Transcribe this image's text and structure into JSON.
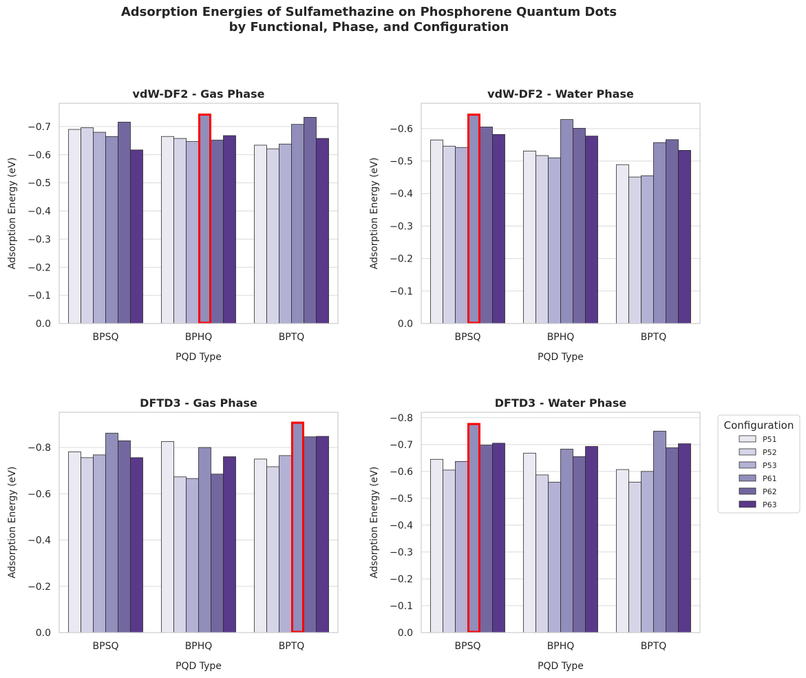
{
  "figure": {
    "title_line1": "Adsorption Energies of Sulfamethazine on Phosphorene Quantum Dots",
    "title_line2": "by Functional, Phase, and Configuration"
  },
  "legend": {
    "title": "Configuration",
    "entries": [
      "P51",
      "P52",
      "P53",
      "P61",
      "P62",
      "P63"
    ],
    "colors": [
      "#ebe9f2",
      "#d6d5e8",
      "#b3b1d4",
      "#918ebb",
      "#73679f",
      "#593989"
    ]
  },
  "highlight_color": "#ff0000",
  "chart_data": [
    {
      "type": "bar",
      "title": "vdW-DF2 - Gas Phase",
      "xlabel": "PQD Type",
      "ylabel": "Adsorption Energy (eV)",
      "categories": [
        "BPSQ",
        "BPHQ",
        "BPTQ"
      ],
      "ylim": [
        0,
        -0.783
      ],
      "yticks": [
        0.0,
        -0.1,
        -0.2,
        -0.3,
        -0.4,
        -0.5,
        -0.6,
        -0.7
      ],
      "ytick_labels": [
        "0.0",
        "−0.1",
        "−0.2",
        "−0.3",
        "−0.4",
        "−0.5",
        "−0.6",
        "−0.7"
      ],
      "series": [
        {
          "name": "P51",
          "values": [
            -0.69,
            -0.665,
            -0.634
          ]
        },
        {
          "name": "P52",
          "values": [
            -0.696,
            -0.658,
            -0.621
          ]
        },
        {
          "name": "P53",
          "values": [
            -0.68,
            -0.647,
            -0.638
          ]
        },
        {
          "name": "P61",
          "values": [
            -0.665,
            -0.745,
            -0.708
          ]
        },
        {
          "name": "P62",
          "values": [
            -0.716,
            -0.652,
            -0.733
          ]
        },
        {
          "name": "P63",
          "values": [
            -0.617,
            -0.668,
            -0.658
          ]
        }
      ],
      "highlight": {
        "category": "BPHQ",
        "series": "P61"
      },
      "grid": true
    },
    {
      "type": "bar",
      "title": "vdW-DF2 - Water Phase",
      "xlabel": "PQD Type",
      "ylabel": "Adsorption Energy (eV)",
      "categories": [
        "BPSQ",
        "BPHQ",
        "BPTQ"
      ],
      "ylim": [
        0,
        -0.678
      ],
      "yticks": [
        0.0,
        -0.1,
        -0.2,
        -0.3,
        -0.4,
        -0.5,
        -0.6
      ],
      "ytick_labels": [
        "0.0",
        "−0.1",
        "−0.2",
        "−0.3",
        "−0.4",
        "−0.5",
        "−0.6"
      ],
      "series": [
        {
          "name": "P51",
          "values": [
            -0.565,
            -0.531,
            -0.489
          ]
        },
        {
          "name": "P52",
          "values": [
            -0.546,
            -0.517,
            -0.451
          ]
        },
        {
          "name": "P53",
          "values": [
            -0.542,
            -0.51,
            -0.455
          ]
        },
        {
          "name": "P61",
          "values": [
            -0.645,
            -0.628,
            -0.557
          ]
        },
        {
          "name": "P62",
          "values": [
            -0.605,
            -0.601,
            -0.566
          ]
        },
        {
          "name": "P63",
          "values": [
            -0.582,
            -0.577,
            -0.533
          ]
        }
      ],
      "highlight": {
        "category": "BPSQ",
        "series": "P61"
      },
      "grid": true
    },
    {
      "type": "bar",
      "title": "DFTD3 - Gas Phase",
      "xlabel": "PQD Type",
      "ylabel": "Adsorption Energy (eV)",
      "categories": [
        "BPSQ",
        "BPHQ",
        "BPTQ"
      ],
      "ylim": [
        0,
        -0.952
      ],
      "yticks": [
        0.0,
        -0.2,
        -0.4,
        -0.6,
        -0.8
      ],
      "ytick_labels": [
        "0.0",
        "−0.2",
        "−0.4",
        "−0.6",
        "−0.8"
      ],
      "series": [
        {
          "name": "P51",
          "values": [
            -0.781,
            -0.826,
            -0.75
          ]
        },
        {
          "name": "P52",
          "values": [
            -0.756,
            -0.673,
            -0.717
          ]
        },
        {
          "name": "P53",
          "values": [
            -0.768,
            -0.666,
            -0.765
          ]
        },
        {
          "name": "P61",
          "values": [
            -0.862,
            -0.8,
            -0.91
          ]
        },
        {
          "name": "P62",
          "values": [
            -0.829,
            -0.685,
            -0.846
          ]
        },
        {
          "name": "P63",
          "values": [
            -0.756,
            -0.76,
            -0.848
          ]
        }
      ],
      "highlight": {
        "category": "BPTQ",
        "series": "P61"
      },
      "grid": true
    },
    {
      "type": "bar",
      "title": "DFTD3 - Water Phase",
      "xlabel": "PQD Type",
      "ylabel": "Adsorption Energy (eV)",
      "categories": [
        "BPSQ",
        "BPHQ",
        "BPTQ"
      ],
      "ylim": [
        0,
        -0.82
      ],
      "yticks": [
        0.0,
        -0.1,
        -0.2,
        -0.3,
        -0.4,
        -0.5,
        -0.6,
        -0.7,
        -0.8
      ],
      "ytick_labels": [
        "0.0",
        "−0.1",
        "−0.2",
        "−0.3",
        "−0.4",
        "−0.5",
        "−0.6",
        "−0.7",
        "−0.8"
      ],
      "series": [
        {
          "name": "P51",
          "values": [
            -0.645,
            -0.668,
            -0.607
          ]
        },
        {
          "name": "P52",
          "values": [
            -0.605,
            -0.587,
            -0.56
          ]
        },
        {
          "name": "P53",
          "values": [
            -0.637,
            -0.56,
            -0.6
          ]
        },
        {
          "name": "P61",
          "values": [
            -0.779,
            -0.683,
            -0.75
          ]
        },
        {
          "name": "P62",
          "values": [
            -0.698,
            -0.655,
            -0.688
          ]
        },
        {
          "name": "P63",
          "values": [
            -0.705,
            -0.693,
            -0.703
          ]
        }
      ],
      "highlight": {
        "category": "BPSQ",
        "series": "P61"
      },
      "grid": true
    }
  ]
}
